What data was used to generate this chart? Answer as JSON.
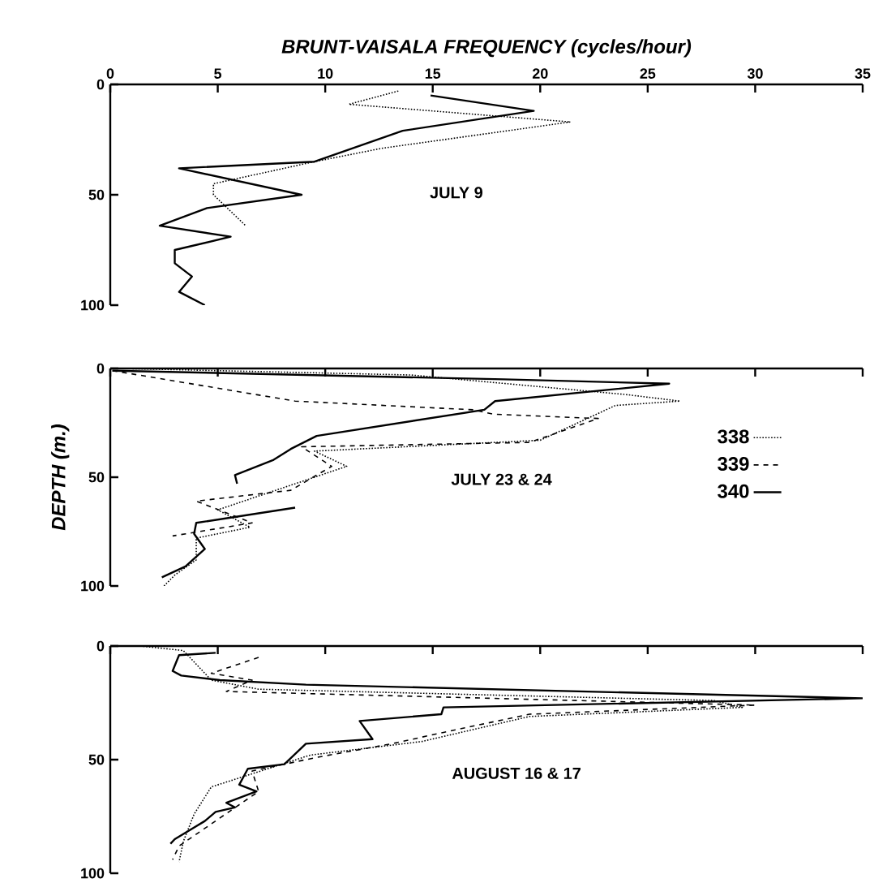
{
  "chart_data": [
    {
      "type": "line",
      "xlabel": "BRUNT-VAISALA FREQUENCY (cycles/hour)",
      "xlim": [
        0,
        35
      ],
      "xticks": [
        0,
        5,
        10,
        15,
        20,
        25,
        30,
        35
      ],
      "ylim": [
        100,
        0
      ],
      "yticks": [
        0,
        50,
        100
      ],
      "annotations": [
        "JULY 9"
      ],
      "series": [
        {
          "color": "#000000",
          "line_style": "dotted",
          "x": [
            13.4,
            11.1,
            21.4,
            12.6,
            9.5,
            4.8,
            4.8,
            6.3
          ],
          "values": [
            3,
            9,
            17,
            29,
            35,
            45,
            50,
            64
          ]
        },
        {
          "color": "#000000",
          "line_style": "solid",
          "x": [
            14.9,
            19.7,
            13.6,
            9.5,
            3.2,
            8.9,
            4.5,
            2.3,
            5.6,
            3.0,
            3.0,
            3.8,
            3.2,
            4.4
          ],
          "values": [
            5,
            12,
            21,
            35,
            38,
            50,
            56,
            64,
            69,
            75,
            81,
            87,
            94,
            100
          ]
        }
      ]
    },
    {
      "type": "line",
      "ylabel": "DEPTH (m.)",
      "xlim": [
        0,
        35
      ],
      "xticks": [
        0,
        5,
        10,
        15,
        20,
        25,
        30,
        35
      ],
      "ylim": [
        100,
        0
      ],
      "yticks": [
        0,
        50,
        100
      ],
      "tick_labels": "y",
      "legend": "right",
      "annotations": [
        "JULY 23 & 24"
      ],
      "series": [
        {
          "name": "338",
          "color": "#000000",
          "line_style": "dotted",
          "x": [
            0.5,
            14,
            24,
            26.5,
            23.5,
            20,
            9.5,
            11,
            5,
            6.5,
            4,
            4,
            3,
            2.5
          ],
          "values": [
            0,
            3,
            12,
            15,
            17,
            33,
            38,
            45,
            65,
            73,
            78,
            88,
            95,
            100
          ]
        },
        {
          "name": "339",
          "color": "#000000",
          "line_style": "dashed",
          "x": [
            0.1,
            8.6,
            16.9,
            17.8,
            22.7,
            19.5,
            8.9,
            10.3,
            8.4,
            4.0,
            6.6,
            2.9
          ],
          "values": [
            1,
            15,
            19,
            21,
            23,
            34,
            36,
            45,
            56,
            61,
            71,
            77
          ]
        },
        {
          "name": "340",
          "color": "#000000",
          "line_style": "solid",
          "x": [
            0.1,
            18.3,
            26.0,
            17.9,
            17.4,
            9.6,
            8.4,
            7.6,
            5.8,
            5.9,
            null,
            8.6,
            4.0,
            3.9,
            4.4,
            3.5,
            2.4
          ],
          "values": [
            1,
            5,
            7,
            15,
            19,
            31,
            37,
            42,
            49,
            53,
            null,
            64,
            71,
            76,
            83,
            91,
            96
          ]
        }
      ]
    },
    {
      "type": "line",
      "xlim": [
        0,
        35
      ],
      "xticks": [
        0,
        5,
        10,
        15,
        20,
        25,
        30,
        35
      ],
      "ylim": [
        100,
        0
      ],
      "yticks": [
        0,
        50,
        100
      ],
      "tick_labels": "y",
      "annotations": [
        "AUGUST 16 & 17"
      ],
      "series": [
        {
          "color": "#000000",
          "line_style": "dotted",
          "x": [
            1.4,
            3.4,
            4.7,
            6.9,
            28.1,
            29.4,
            19.5,
            14.5,
            9.3,
            4.7,
            3.9,
            3.4,
            3.2
          ],
          "values": [
            0,
            2,
            15,
            19,
            24,
            27,
            31,
            42,
            48,
            62,
            74,
            86,
            95
          ]
        },
        {
          "color": "#000000",
          "line_style": "dashed",
          "x": [
            6.9,
            4.7,
            6.6,
            5.4,
            30.0,
            19.5,
            15.5,
            13.1,
            9.6,
            6.6,
            6.9,
            3.2,
            2.9
          ],
          "values": [
            5,
            12,
            15,
            20,
            26,
            30,
            38,
            43,
            49,
            55,
            64,
            88,
            94
          ]
        },
        {
          "color": "#000000",
          "line_style": "solid",
          "x": [
            4.9,
            3.2,
            2.9,
            3.3,
            5.1,
            9.1,
            35.0,
            15.5,
            15.4,
            11.6,
            12.2,
            9.1,
            8.1,
            6.4,
            6.0,
            6.8,
            5.4,
            5.8,
            4.9,
            4.4,
            3.0,
            2.8
          ],
          "values": [
            3,
            4,
            11,
            13,
            15,
            17,
            23,
            27,
            30,
            33,
            41,
            43,
            52,
            54,
            61,
            64,
            69,
            71,
            73,
            77,
            85,
            87
          ]
        }
      ]
    }
  ]
}
